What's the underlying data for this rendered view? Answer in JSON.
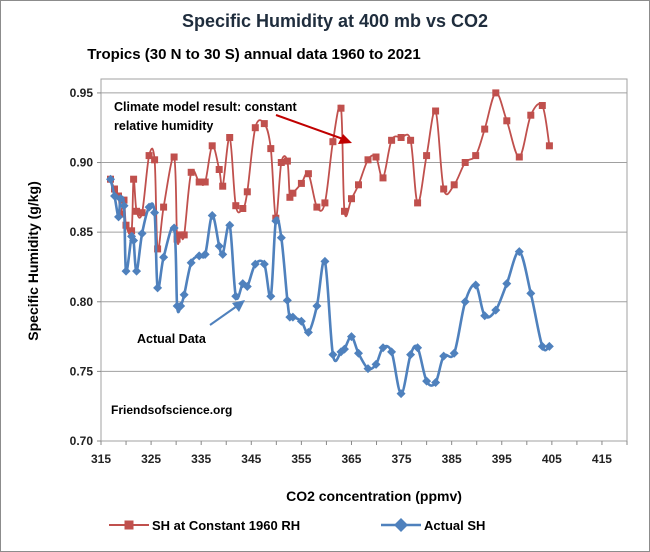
{
  "chart_data": {
    "type": "line",
    "title": "Specific Humidity  at 400 mb vs CO2",
    "subtitle": "Tropics (30 N to 30 S) annual data 1960 to 2021",
    "xlabel": "CO2 concentration (ppmv)",
    "ylabel": "Specific Humidity (g/kg)",
    "xlim": [
      315,
      420
    ],
    "ylim": [
      0.7,
      0.96
    ],
    "x_ticks": [
      "315",
      "325",
      "335",
      "345",
      "355",
      "365",
      "375",
      "385",
      "395",
      "405",
      "415"
    ],
    "y_ticks": [
      "0.70",
      "0.75",
      "0.80",
      "0.85",
      "0.90",
      "0.95"
    ],
    "grid": "horizontal",
    "legend_position": "bottom",
    "annotations": {
      "model_line1": "Climate model result: constant",
      "model_line2": "relative humidity",
      "actual": "Actual  Data",
      "source": "Friendsofscience.org"
    },
    "series": [
      {
        "name": "SH at Constant 1960 RH",
        "color": "#c0504d",
        "marker": "square",
        "points": [
          [
            316.9,
            0.888
          ],
          [
            317.7,
            0.881
          ],
          [
            318.5,
            0.876
          ],
          [
            318.9,
            0.863
          ],
          [
            319.6,
            0.873
          ],
          [
            320.0,
            0.855
          ],
          [
            321.1,
            0.851
          ],
          [
            321.5,
            0.888
          ],
          [
            322.1,
            0.865
          ],
          [
            323.2,
            0.864
          ],
          [
            324.6,
            0.905
          ],
          [
            325.7,
            0.902
          ],
          [
            326.3,
            0.838
          ],
          [
            327.5,
            0.868
          ],
          [
            329.6,
            0.904
          ],
          [
            330.2,
            0.845
          ],
          [
            330.9,
            0.848
          ],
          [
            331.6,
            0.848
          ],
          [
            333.0,
            0.893
          ],
          [
            334.6,
            0.886
          ],
          [
            335.8,
            0.886
          ],
          [
            337.2,
            0.912
          ],
          [
            338.6,
            0.895
          ],
          [
            339.3,
            0.883
          ],
          [
            340.7,
            0.918
          ],
          [
            341.9,
            0.869
          ],
          [
            343.3,
            0.867
          ],
          [
            344.2,
            0.879
          ],
          [
            345.8,
            0.925
          ],
          [
            347.6,
            0.928
          ],
          [
            348.9,
            0.91
          ],
          [
            349.9,
            0.86
          ],
          [
            351.0,
            0.9
          ],
          [
            352.2,
            0.901
          ],
          [
            352.7,
            0.875
          ],
          [
            353.3,
            0.878
          ],
          [
            355.0,
            0.885
          ],
          [
            356.4,
            0.892
          ],
          [
            358.1,
            0.868
          ],
          [
            359.7,
            0.871
          ],
          [
            361.3,
            0.915
          ],
          [
            362.9,
            0.939
          ],
          [
            363.6,
            0.865
          ],
          [
            365.0,
            0.874
          ],
          [
            366.4,
            0.884
          ],
          [
            368.3,
            0.902
          ],
          [
            369.9,
            0.904
          ],
          [
            371.3,
            0.889
          ],
          [
            373.0,
            0.916
          ],
          [
            374.9,
            0.918
          ],
          [
            376.8,
            0.916
          ],
          [
            378.2,
            0.871
          ],
          [
            380.0,
            0.905
          ],
          [
            381.8,
            0.937
          ],
          [
            383.4,
            0.881
          ],
          [
            385.5,
            0.884
          ],
          [
            387.7,
            0.9
          ],
          [
            389.8,
            0.905
          ],
          [
            391.6,
            0.924
          ],
          [
            393.8,
            0.95
          ],
          [
            396.0,
            0.93
          ],
          [
            398.5,
            0.904
          ],
          [
            400.8,
            0.934
          ],
          [
            403.1,
            0.941
          ],
          [
            404.5,
            0.912
          ]
        ]
      },
      {
        "name": "Actual SH",
        "color": "#4f81bd",
        "marker": "diamond",
        "points": [
          [
            316.9,
            0.888
          ],
          [
            317.7,
            0.876
          ],
          [
            318.5,
            0.861
          ],
          [
            318.9,
            0.874
          ],
          [
            319.6,
            0.869
          ],
          [
            320.0,
            0.822
          ],
          [
            321.1,
            0.847
          ],
          [
            321.5,
            0.844
          ],
          [
            322.1,
            0.822
          ],
          [
            323.2,
            0.849
          ],
          [
            324.6,
            0.868
          ],
          [
            325.7,
            0.864
          ],
          [
            326.3,
            0.81
          ],
          [
            327.5,
            0.832
          ],
          [
            329.6,
            0.853
          ],
          [
            330.2,
            0.797
          ],
          [
            330.9,
            0.797
          ],
          [
            331.6,
            0.805
          ],
          [
            333.0,
            0.828
          ],
          [
            334.6,
            0.833
          ],
          [
            335.8,
            0.834
          ],
          [
            337.2,
            0.862
          ],
          [
            338.6,
            0.84
          ],
          [
            339.3,
            0.834
          ],
          [
            340.7,
            0.855
          ],
          [
            341.9,
            0.804
          ],
          [
            343.3,
            0.813
          ],
          [
            344.2,
            0.811
          ],
          [
            345.8,
            0.827
          ],
          [
            347.6,
            0.827
          ],
          [
            348.9,
            0.804
          ],
          [
            349.9,
            0.858
          ],
          [
            351.0,
            0.846
          ],
          [
            352.2,
            0.801
          ],
          [
            352.7,
            0.789
          ],
          [
            353.3,
            0.789
          ],
          [
            355.0,
            0.786
          ],
          [
            356.4,
            0.778
          ],
          [
            358.1,
            0.797
          ],
          [
            359.7,
            0.829
          ],
          [
            361.3,
            0.762
          ],
          [
            362.9,
            0.764
          ],
          [
            363.6,
            0.766
          ],
          [
            365.0,
            0.775
          ],
          [
            366.4,
            0.763
          ],
          [
            368.3,
            0.752
          ],
          [
            369.9,
            0.755
          ],
          [
            371.3,
            0.767
          ],
          [
            373.0,
            0.764
          ],
          [
            374.9,
            0.734
          ],
          [
            376.8,
            0.762
          ],
          [
            378.2,
            0.767
          ],
          [
            380.0,
            0.743
          ],
          [
            381.8,
            0.742
          ],
          [
            383.4,
            0.761
          ],
          [
            385.5,
            0.763
          ],
          [
            387.7,
            0.8
          ],
          [
            389.8,
            0.812
          ],
          [
            391.6,
            0.79
          ],
          [
            393.8,
            0.794
          ],
          [
            396.0,
            0.813
          ],
          [
            398.5,
            0.836
          ],
          [
            400.8,
            0.806
          ],
          [
            403.1,
            0.768
          ],
          [
            404.5,
            0.768
          ]
        ]
      }
    ]
  }
}
